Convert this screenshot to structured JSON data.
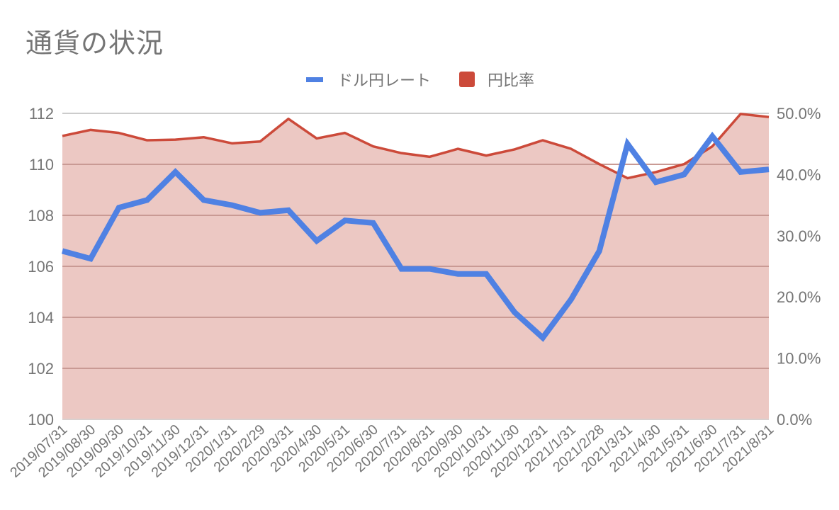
{
  "title": "通貨の状況",
  "legend": [
    {
      "label": "ドル円レート",
      "color": "#4f81e3",
      "shape": "line"
    },
    {
      "label": "円比率",
      "color": "#cc4a3a",
      "shape": "square"
    }
  ],
  "colors": {
    "area_fill": "#ecc8c3",
    "grid": "#c99a94",
    "top_grid": "#cccccc",
    "axis_text": "#757575"
  },
  "chart_data": {
    "type": "line",
    "title": "通貨の状況",
    "xlabel": "",
    "ylabel": "",
    "categories": [
      "2019/07/31",
      "2019/08/30",
      "2019/09/30",
      "2019/10/31",
      "2019/11/30",
      "2019/12/31",
      "2020/1/31",
      "2020/2/29",
      "2020/3/31",
      "2020/4/30",
      "2020/5/31",
      "2020/6/30",
      "2020/7/31",
      "2020/8/31",
      "2020/9/30",
      "2020/10/31",
      "2020/11/30",
      "2020/12/31",
      "2021/1/31",
      "2021/2/28",
      "2021/3/31",
      "2021/4/30",
      "2021/5/31",
      "2021/6/30",
      "2021/7/31",
      "2021/8/31"
    ],
    "series": [
      {
        "name": "ドル円レート",
        "type": "line",
        "axis": "left",
        "values": [
          106.6,
          106.3,
          108.3,
          108.6,
          109.7,
          108.6,
          108.4,
          108.1,
          108.2,
          107.0,
          107.8,
          107.7,
          105.9,
          105.9,
          105.7,
          105.7,
          104.2,
          103.2,
          104.7,
          106.6,
          110.8,
          109.3,
          109.6,
          111.1,
          109.7,
          109.8
        ]
      },
      {
        "name": "円比率",
        "type": "area",
        "axis": "right",
        "unit": "%",
        "values": [
          46.3,
          47.3,
          46.8,
          45.6,
          45.7,
          46.1,
          45.1,
          45.4,
          49.1,
          45.9,
          46.8,
          44.6,
          43.5,
          42.9,
          44.2,
          43.1,
          44.1,
          45.6,
          44.2,
          41.7,
          39.4,
          40.4,
          41.7,
          44.6,
          49.9,
          49.4
        ]
      }
    ],
    "ylim": [
      100,
      112
    ],
    "y_ticks": [
      "100",
      "102",
      "104",
      "106",
      "108",
      "110",
      "112"
    ],
    "y2lim": [
      0,
      50
    ],
    "y2_ticks": [
      "0.0%",
      "10.0%",
      "20.0%",
      "30.0%",
      "40.0%",
      "50.0%"
    ],
    "grid": true,
    "legend_position": "top"
  }
}
